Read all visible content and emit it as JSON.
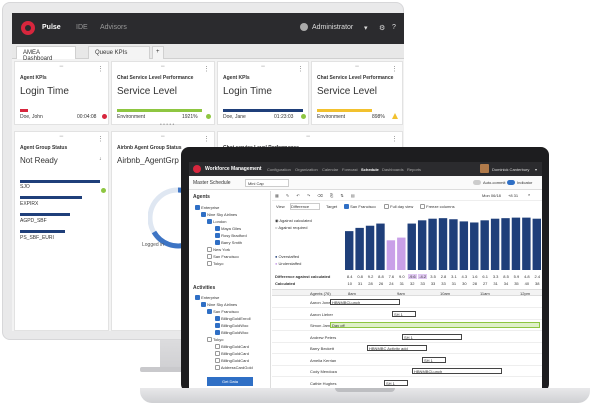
{
  "pulse": {
    "app_name": "Pulse",
    "nav": [
      "IDE",
      "Advisors"
    ],
    "user": "Administrator",
    "tabs": [
      "AMEA Dashboard",
      "Queue KPIs"
    ],
    "tab_add": "+",
    "cards_row1": [
      {
        "title": "Agent KPIs",
        "value": "Login Time",
        "label": "Doe, John",
        "stat": "00:04:08",
        "accent": "#d7263d"
      },
      {
        "title": "Chat Service Level Performance",
        "value": "Service Level",
        "label": "Environment",
        "stat": "1921%",
        "accent": "#8ec641"
      },
      {
        "title": "Agent KPIs",
        "value": "Login Time",
        "label": "Doe, Jane",
        "stat": "01:23:03",
        "accent": "#1f3f7a"
      },
      {
        "title": "Chat Service Level Performance",
        "value": "Service Level",
        "label": "Environment",
        "stat": "898%",
        "accent": "#f2c12e"
      }
    ],
    "card_group": {
      "title": "Agent Group Status",
      "value": "Not Ready",
      "rows": [
        "SJO",
        "EXPIRX",
        "AGPD_SBF",
        "PS_SBF_EURI"
      ]
    },
    "card_airbnb": {
      "title": "Airbnb Agent Group Status",
      "value": "Airbnb_AgentGrp",
      "legend": "Logged in"
    },
    "card_chat3": {
      "title": "Chat service Level Performance"
    }
  },
  "wfm": {
    "app_name": "Workforce Management",
    "nav": [
      "Configuration",
      "Organization",
      "Calendar",
      "Forecast",
      "Schedule",
      "Dashboards",
      "Reports"
    ],
    "active_nav": "Schedule",
    "user": "Dominick Canterbury",
    "view_label": "Master Schedule",
    "site": "Mini Cap",
    "auto_commit": "Auto-commit",
    "indicator": "Indicator",
    "date": "Mon 06/18",
    "zoom": "+8 31",
    "agents_header": "Agents",
    "tree": [
      "Enterprise",
      "Nine Sky Airlines",
      "London",
      "Maya Giles",
      "Rosy Bradford",
      "Barry Smith",
      "New York",
      "San Francisco",
      "Tokyo"
    ],
    "activities_header": "Activities",
    "activities": [
      "Enterprise",
      "Nine Sky Airlines",
      "San Francisco",
      "BillingGoldEnroll",
      "BillingGoldWoo",
      "BillingGoldWoo",
      "Tokyo",
      "BillingGoldCard",
      "BillingGoldCard",
      "BillingGoldCard",
      "AddressCardGold"
    ],
    "get_data": "Get Data",
    "toolbar": {
      "view": "View",
      "difference": "Difference",
      "target": "Target",
      "site": "San Francisco",
      "full_day": "Full day view",
      "frozen": "Freeze columns"
    },
    "legend": [
      "Against calculated",
      "Against required",
      "Overstaffed",
      "Understaffed"
    ],
    "row_labels": [
      "Difference against calculated",
      "Calculated"
    ],
    "diffs": [
      "8.4",
      "0.8",
      "9.2",
      "8.8",
      "7.6",
      "9.0",
      "-9.6",
      "-4.2",
      "3.5",
      "2.8",
      "3.1",
      "4.3",
      "1.6",
      "6.1",
      "3.3",
      "8.5",
      "5.9",
      "4.8",
      "2.4"
    ],
    "calc": [
      "10",
      "31",
      "28",
      "26",
      "24",
      "31",
      "32",
      "33",
      "33",
      "33",
      "31",
      "30",
      "28",
      "27",
      "31",
      "34",
      "35",
      "40",
      "38"
    ],
    "bars": [
      0.72,
      0.78,
      0.82,
      0.86,
      0.55,
      0.6,
      0.86,
      0.92,
      0.95,
      0.96,
      0.94,
      0.9,
      0.88,
      0.92,
      0.95,
      0.96,
      0.97,
      0.97,
      0.95
    ],
    "grid_header": [
      "Agents (76)",
      "8am",
      "9am",
      "10am",
      "11am",
      "12pm"
    ],
    "agents": [
      {
        "name": "Aaron Jones",
        "bar": "HBNMBCLunch",
        "color": "#444"
      },
      {
        "name": "Aaron Lieber",
        "bar": "SH 1",
        "color": "#444"
      },
      {
        "name": "Simon Jameson",
        "bar": "Day off",
        "color": "#8ec641"
      },
      {
        "name": "Andrew Peters",
        "bar": "SH 1",
        "color": "#444"
      },
      {
        "name": "Barry Beckett",
        "bar": "HBNMBC Activity add",
        "color": "#444"
      },
      {
        "name": "Amelia Kerrian",
        "bar": "SH 1",
        "color": "#444"
      },
      {
        "name": "Cody Mendoza",
        "bar": "HBNMBCLunch",
        "color": "#444"
      },
      {
        "name": "Cathie Hughes",
        "bar": "SH 1",
        "color": "#444"
      }
    ],
    "accent": "#2f6fc5"
  }
}
